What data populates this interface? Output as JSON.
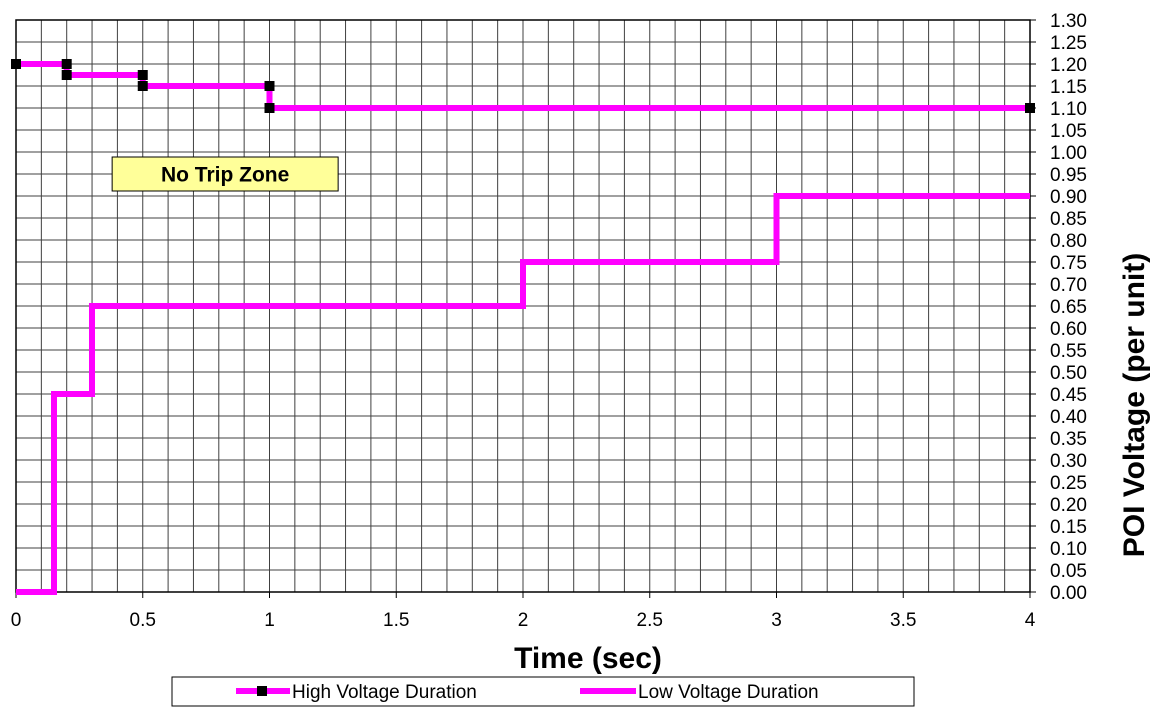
{
  "chart_data": {
    "type": "line",
    "title": "",
    "xlabel": "Time (sec)",
    "ylabel": "POI Voltage (per unit)",
    "xlim": [
      0,
      4
    ],
    "ylim": [
      0,
      1.3
    ],
    "x_ticks": [
      "0",
      "0.5",
      "1",
      "1.5",
      "2",
      "2.5",
      "3",
      "3.5",
      "4"
    ],
    "y_ticks": [
      "0.00",
      "0.05",
      "0.10",
      "0.15",
      "0.20",
      "0.25",
      "0.30",
      "0.35",
      "0.40",
      "0.45",
      "0.50",
      "0.55",
      "0.60",
      "0.65",
      "0.70",
      "0.75",
      "0.80",
      "0.85",
      "0.90",
      "0.95",
      "1.00",
      "1.05",
      "1.10",
      "1.15",
      "1.20",
      "1.25",
      "1.30"
    ],
    "grid": true,
    "legend_position": "bottom",
    "y_axis_side": "right",
    "series": [
      {
        "name": "High Voltage Duration",
        "color": "#ff00ff",
        "marker": "square",
        "marker_color": "#000000",
        "points": [
          [
            0,
            1.2
          ],
          [
            0.2,
            1.2
          ],
          [
            0.2,
            1.175
          ],
          [
            0.5,
            1.175
          ],
          [
            0.5,
            1.15
          ],
          [
            1.0,
            1.15
          ],
          [
            1.0,
            1.1
          ],
          [
            4.0,
            1.1
          ]
        ]
      },
      {
        "name": "Low Voltage Duration",
        "color": "#ff00ff",
        "marker": "none",
        "points": [
          [
            0,
            0
          ],
          [
            0.15,
            0
          ],
          [
            0.15,
            0.45
          ],
          [
            0.3,
            0.45
          ],
          [
            0.3,
            0.65
          ],
          [
            2.0,
            0.65
          ],
          [
            2.0,
            0.75
          ],
          [
            3.0,
            0.75
          ],
          [
            3.0,
            0.9
          ],
          [
            4.0,
            0.9
          ]
        ]
      }
    ],
    "annotations": [
      {
        "text": "No Trip Zone",
        "x": 0.825,
        "y": 0.95,
        "background": "#ffff99"
      }
    ]
  }
}
